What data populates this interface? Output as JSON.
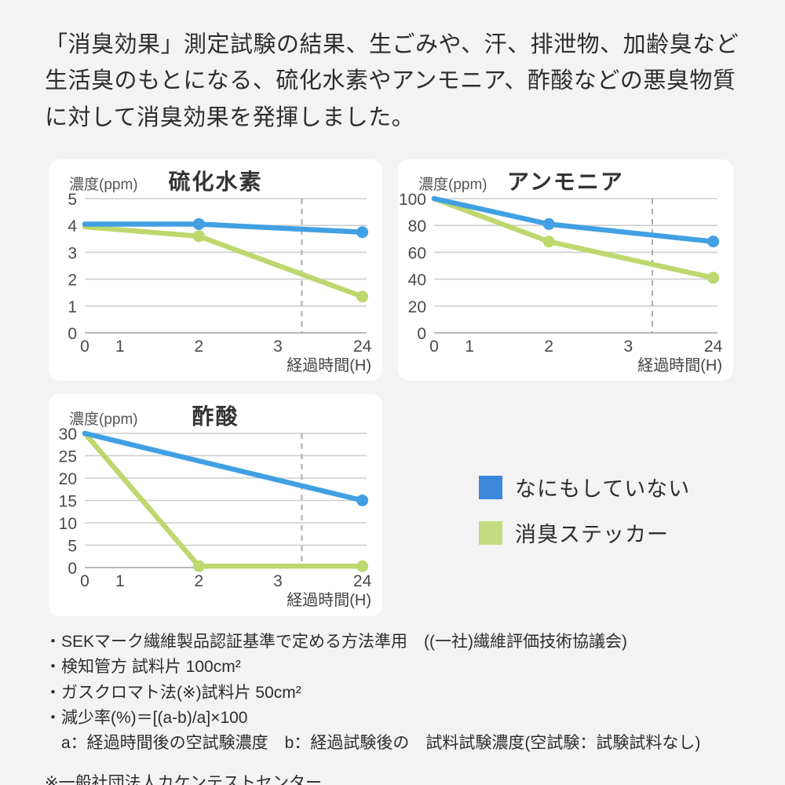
{
  "header": {
    "text": "「消臭効果」測定試験の結果、生ごみや、汗、排泄物、加齢臭など生活臭のもとになる、硫化水素やアンモニア、酢酸などの悪臭物質に対して消臭効果を発揮しました。"
  },
  "colors": {
    "background": "#f3f3f3",
    "panel": "#ffffff",
    "blue_line": "#41a0e3",
    "green_line": "#bed76e",
    "grid": "#cecece",
    "dashed_guide": "#ababab"
  },
  "legend": {
    "items": [
      {
        "label": "なにもしていない",
        "color": "#3c87db"
      },
      {
        "label": "消臭ステッカー",
        "color": "#c3da80"
      }
    ]
  },
  "chart_data": [
    {
      "type": "line",
      "title": "硫化水素",
      "ylabel": "濃度(ppm)",
      "xlabel": "経過時間(H)",
      "x_ticks": [
        0,
        1,
        2,
        3,
        24
      ],
      "ylim": [
        0,
        5
      ],
      "yticks": [
        0,
        1,
        2,
        3,
        4,
        5
      ],
      "grid": true,
      "dashed_guide_between": [
        3,
        24
      ],
      "series": [
        {
          "name": "なにもしていない",
          "color": "#41a0e3",
          "points": [
            [
              0,
              4.05
            ],
            [
              2,
              4.05
            ],
            [
              24,
              3.75
            ]
          ],
          "marker_at": [
            2,
            24
          ]
        },
        {
          "name": "消臭ステッカー",
          "color": "#bed76e",
          "points": [
            [
              0,
              3.95
            ],
            [
              2,
              3.6
            ],
            [
              24,
              1.35
            ]
          ],
          "marker_at": [
            2,
            24
          ]
        }
      ]
    },
    {
      "type": "line",
      "title": "アンモニア",
      "ylabel": "濃度(ppm)",
      "xlabel": "経過時間(H)",
      "x_ticks": [
        0,
        1,
        2,
        3,
        24
      ],
      "ylim": [
        0,
        100
      ],
      "yticks": [
        0,
        20,
        40,
        60,
        80,
        100
      ],
      "grid": true,
      "dashed_guide_between": [
        3,
        24
      ],
      "series": [
        {
          "name": "なにもしていない",
          "color": "#41a0e3",
          "points": [
            [
              0,
              100
            ],
            [
              2,
              81
            ],
            [
              24,
              68
            ]
          ],
          "marker_at": [
            2,
            24
          ]
        },
        {
          "name": "消臭ステッカー",
          "color": "#bed76e",
          "points": [
            [
              0,
              100
            ],
            [
              2,
              68
            ],
            [
              24,
              41
            ]
          ],
          "marker_at": [
            2,
            24
          ]
        }
      ]
    },
    {
      "type": "line",
      "title": "酢酸",
      "ylabel": "濃度(ppm)",
      "xlabel": "経過時間(H)",
      "x_ticks": [
        0,
        1,
        2,
        3,
        24
      ],
      "ylim": [
        0,
        30
      ],
      "yticks": [
        0,
        5,
        10,
        15,
        20,
        25,
        30
      ],
      "grid": true,
      "dashed_guide_between": [
        3,
        24
      ],
      "series": [
        {
          "name": "なにもしていない",
          "color": "#41a0e3",
          "points": [
            [
              0,
              30
            ],
            [
              24,
              15
            ]
          ],
          "marker_at": [
            24
          ]
        },
        {
          "name": "消臭ステッカー",
          "color": "#bed76e",
          "points": [
            [
              0,
              30
            ],
            [
              2,
              0.3
            ],
            [
              24,
              0.3
            ]
          ],
          "marker_at": [
            2,
            24
          ]
        }
      ]
    }
  ],
  "footnotes": {
    "lines": [
      "・SEKマーク繊維製品認証基準で定める方法準用　((一社)繊維評価技術協議会)",
      "・検知管方 試料片 100cm²",
      "・ガスクロマト法(※)試料片 50cm²",
      "・減少率(%)＝[(a-b)/a]×100",
      "　a：経過時間後の空試験濃度　b：経過試験後の　試料試験濃度(空試験：試験試料なし)"
    ],
    "source": "※一般社団法人カケンテストセンター"
  }
}
